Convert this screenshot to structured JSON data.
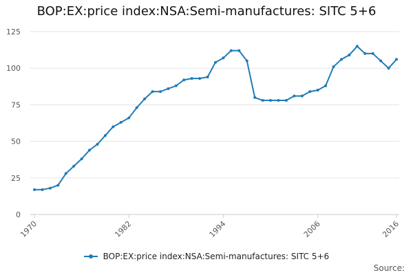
{
  "chart_data": {
    "type": "line",
    "title": "BOP:EX:price index:NSA:Semi-manufactures: SITC 5+6",
    "xlabel": "",
    "ylabel": "",
    "xlim": [
      1970,
      2016
    ],
    "ylim": [
      0,
      125
    ],
    "y_ticks": [
      "0",
      "25",
      "50",
      "75",
      "100",
      "125"
    ],
    "x_ticks": [
      "1970",
      "1982",
      "1994",
      "2006",
      "2016"
    ],
    "grid": "horizontal",
    "legend_position": "bottom",
    "color": "#1f7bb6",
    "series": [
      {
        "name": "BOP:EX:price index:NSA:Semi-manufactures: SITC 5+6",
        "x": [
          1970,
          1971,
          1972,
          1973,
          1974,
          1975,
          1976,
          1977,
          1978,
          1979,
          1980,
          1981,
          1982,
          1983,
          1984,
          1985,
          1986,
          1987,
          1988,
          1989,
          1990,
          1991,
          1992,
          1993,
          1994,
          1995,
          1996,
          1997,
          1998,
          1999,
          2000,
          2001,
          2002,
          2003,
          2004,
          2005,
          2006,
          2007,
          2008,
          2009,
          2010,
          2011,
          2012,
          2013,
          2014,
          2015,
          2016
        ],
        "values": [
          17,
          17,
          18,
          20,
          28,
          33,
          38,
          44,
          48,
          54,
          60,
          63,
          66,
          73,
          79,
          84,
          84,
          86,
          88,
          92,
          93,
          93,
          94,
          104,
          107,
          112,
          112,
          105,
          80,
          78,
          78,
          78,
          78,
          81,
          81,
          84,
          85,
          88,
          101,
          106,
          109,
          115,
          110,
          110,
          105,
          100,
          106
        ]
      }
    ]
  },
  "footer": {
    "source_label": "Source:"
  }
}
